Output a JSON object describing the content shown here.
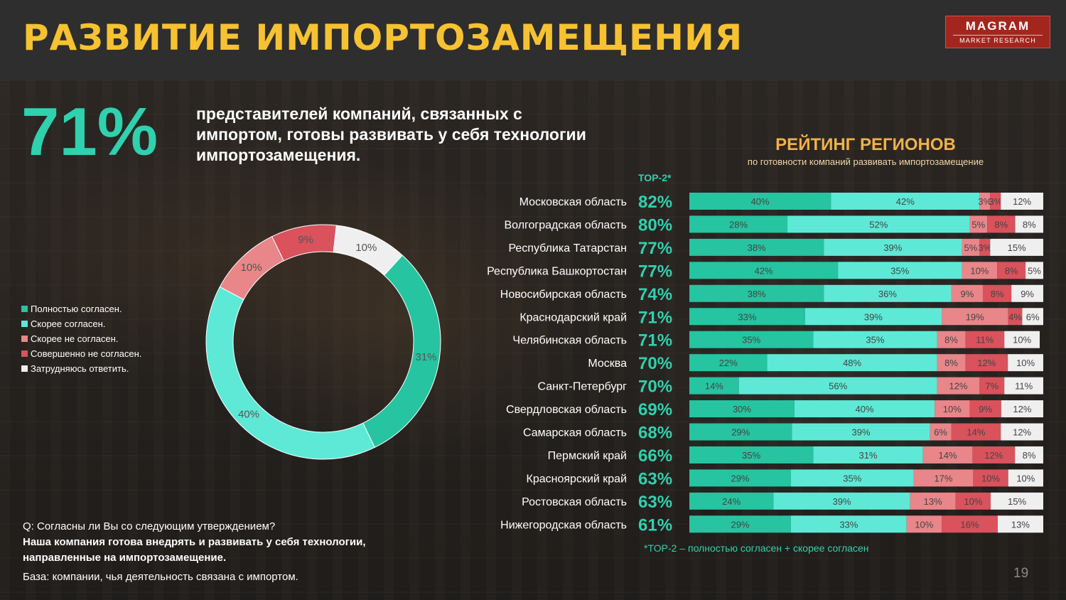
{
  "header": {
    "title": "РАЗВИТИЕ ИМПОРТОЗАМЕЩЕНИЯ"
  },
  "logo": {
    "line1": "MAGRAM",
    "line2": "MARKET RESEARCH"
  },
  "headline": {
    "value": "71%",
    "text": "представителей компаний, связанных с импортом, готовы развивать у себя технологии импортозамещения."
  },
  "rating": {
    "title": "РЕЙТИНГ РЕГИОНОВ",
    "subtitle": "по готовности компаний развивать импортозамещение",
    "top2_label": "TOP-2*",
    "footnote": "*TOP-2 – полностью согласен + скорее согласен"
  },
  "question": {
    "q": "Q: Согласны ли Вы со следующим утверждением?",
    "text": "Наша компания готова внедрять и развивать у себя технологии, направленные на импортозамещение.",
    "base": "База: компании, чья деятельность связана с импортом."
  },
  "page_number": "19",
  "colors": {
    "full_agree": "#26c4a0",
    "rather_agree": "#5ee9d6",
    "rather_disagree": "#e8868a",
    "full_disagree": "#d9525c",
    "hard_to_say": "#efefef",
    "accent": "#2fd1ae",
    "title": "#f6c232"
  },
  "chart_data": [
    {
      "type": "pie",
      "subtype": "donut",
      "categories": [
        "Полностью согласен.",
        "Скорее согласен.",
        "Скорее не согласен.",
        "Совершенно не согласен.",
        "Затрудняюсь ответить."
      ],
      "values": [
        31,
        40,
        10,
        9,
        10
      ],
      "value_labels": [
        "31%",
        "40%",
        "10%",
        "9%",
        "10%"
      ],
      "legend_position": "left"
    },
    {
      "type": "bar",
      "orientation": "horizontal",
      "stacked": true,
      "categories": [
        "Московская область",
        "Волгоградская область",
        "Республика Татарстан",
        "Республика Башкортостан",
        "Новосибирская область",
        "Краснодарский край",
        "Челябинская область",
        "Москва",
        "Санкт-Петербург",
        "Свердловская область",
        "Самарская область",
        "Пермский край",
        "Красноярский край",
        "Ростовская область",
        "Нижегородская область"
      ],
      "top2": [
        "82%",
        "80%",
        "77%",
        "77%",
        "74%",
        "71%",
        "71%",
        "70%",
        "70%",
        "69%",
        "68%",
        "66%",
        "63%",
        "63%",
        "61%"
      ],
      "series": [
        {
          "name": "Полностью согласен.",
          "values": [
            40,
            28,
            38,
            42,
            38,
            33,
            35,
            22,
            14,
            30,
            29,
            35,
            29,
            24,
            29
          ]
        },
        {
          "name": "Скорее согласен.",
          "values": [
            42,
            52,
            39,
            35,
            36,
            39,
            35,
            48,
            56,
            40,
            39,
            31,
            35,
            39,
            33
          ]
        },
        {
          "name": "Скорее не согласен.",
          "values": [
            3,
            5,
            5,
            10,
            9,
            19,
            8,
            8,
            12,
            10,
            6,
            14,
            17,
            13,
            10
          ]
        },
        {
          "name": "Совершенно не согласен.",
          "values": [
            3,
            8,
            3,
            8,
            8,
            4,
            11,
            12,
            7,
            9,
            14,
            12,
            10,
            10,
            16
          ]
        },
        {
          "name": "Затрудняюсь ответить.",
          "values": [
            12,
            8,
            15,
            5,
            9,
            6,
            10,
            10,
            11,
            12,
            12,
            8,
            10,
            15,
            13
          ]
        }
      ],
      "xlim": [
        0,
        100
      ]
    }
  ]
}
